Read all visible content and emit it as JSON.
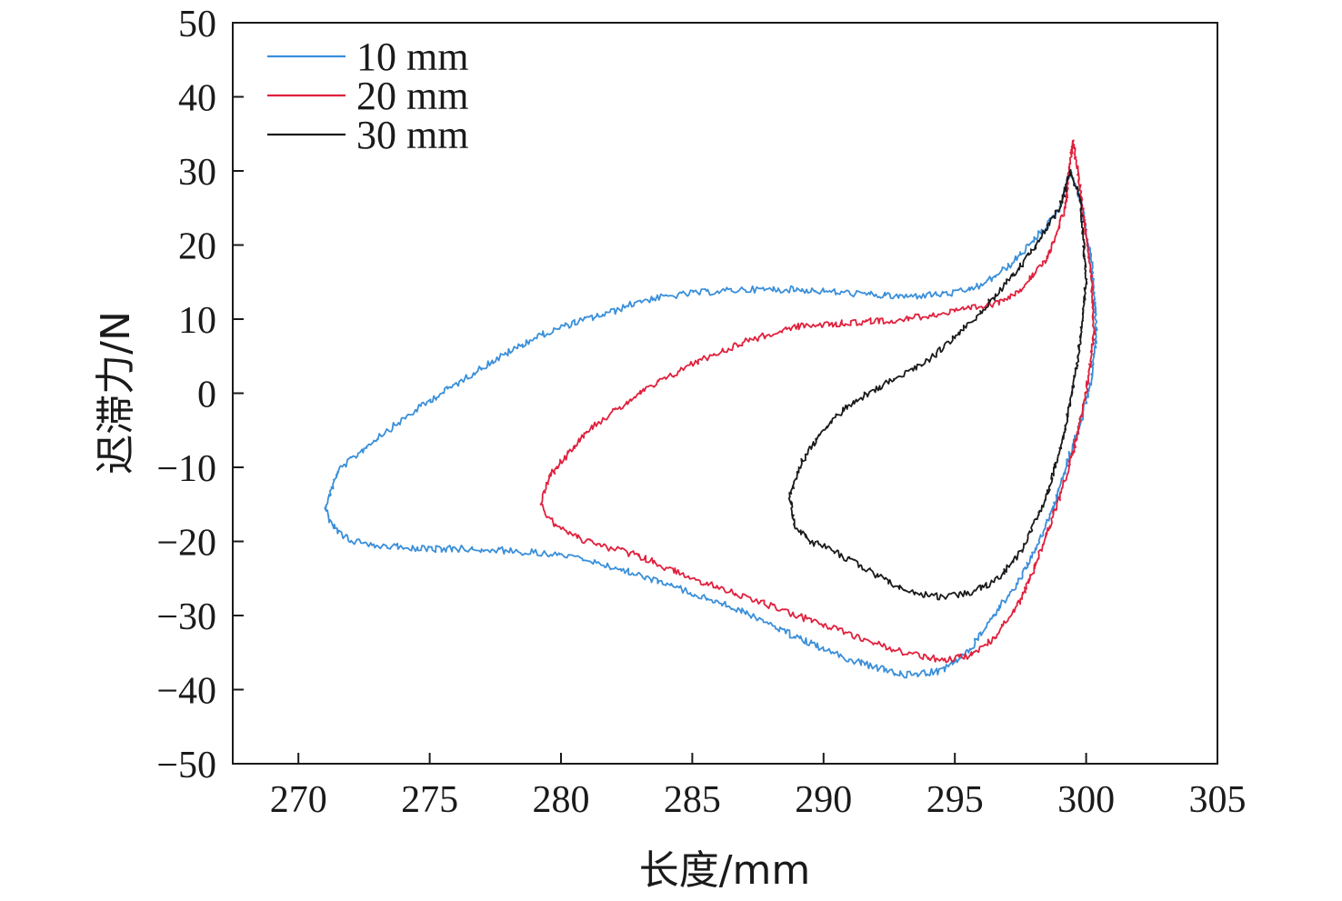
{
  "chart_data": {
    "type": "line",
    "title": "",
    "xlabel": "长度/mm",
    "ylabel": "迟滞力/N",
    "xlim": [
      267.5,
      305
    ],
    "ylim": [
      -50,
      50
    ],
    "xticks": [
      270,
      275,
      280,
      285,
      290,
      295,
      300,
      305
    ],
    "yticks": [
      -50,
      -40,
      -30,
      -20,
      -10,
      0,
      10,
      20,
      30,
      40,
      50
    ],
    "grid": false,
    "legend_position": "top-left",
    "series": [
      {
        "name": "10 mm",
        "color": "#3a8fd9",
        "x": [
          271.0,
          271.5,
          273.0,
          275.0,
          277.0,
          279.0,
          280.5,
          282.0,
          283.0,
          285.0,
          287.0,
          289.0,
          291.0,
          293.0,
          295.0,
          296.0,
          297.0,
          298.0,
          299.0,
          299.4,
          299.8,
          300.2,
          300.4,
          300.2,
          299.8,
          299.3,
          298.8,
          298.2,
          297.5,
          296.5,
          295.5,
          294.5,
          293.0,
          291.0,
          289.0,
          287.0,
          285.0,
          283.0,
          281.0,
          279.0,
          277.0,
          275.0,
          273.0,
          272.0,
          271.4,
          271.0
        ],
        "y": [
          -15.5,
          -10.5,
          -6,
          -1,
          3.5,
          7.5,
          9.5,
          11,
          12.5,
          13.5,
          14,
          14,
          13.5,
          13,
          13.5,
          14.5,
          17,
          20.5,
          25,
          30,
          26,
          18,
          8,
          2,
          -4,
          -9,
          -15,
          -20,
          -25,
          -30,
          -35,
          -37.5,
          -38,
          -36,
          -33,
          -29.5,
          -27,
          -24.5,
          -22.5,
          -21.5,
          -21,
          -21,
          -20.5,
          -20,
          -18.5,
          -15.5
        ]
      },
      {
        "name": "20 mm",
        "color": "#e0203d",
        "x": [
          279.2,
          279.6,
          281.0,
          283.0,
          285.0,
          287.0,
          289.0,
          291.0,
          293.0,
          295.0,
          296.5,
          297.5,
          298.5,
          299.2,
          299.5,
          299.8,
          300.2,
          300.3,
          300.0,
          299.5,
          298.9,
          298.2,
          297.5,
          296.5,
          295.5,
          294.5,
          293.0,
          291.0,
          289.0,
          287.0,
          285.0,
          283.0,
          281.0,
          279.8,
          279.2
        ],
        "y": [
          -15,
          -11,
          -5,
          0,
          4,
          7,
          9,
          9.5,
          10,
          11,
          12,
          14,
          18,
          25,
          34,
          27,
          16,
          8,
          0,
          -8,
          -15,
          -22,
          -28,
          -33,
          -35.5,
          -36,
          -35,
          -32.5,
          -30,
          -27.5,
          -25,
          -22,
          -20,
          -18,
          -15
        ]
      },
      {
        "name": "30 mm",
        "color": "#1a1a1a",
        "x": [
          288.7,
          289.2,
          290.0,
          291.0,
          292.0,
          293.0,
          294.0,
          295.0,
          296.0,
          297.0,
          298.0,
          299.0,
          299.4,
          299.8,
          300.0,
          299.7,
          299.2,
          298.5,
          297.5,
          296.5,
          295.5,
          294.5,
          293.5,
          292.5,
          291.5,
          290.5,
          289.5,
          288.9,
          288.7
        ],
        "y": [
          -14,
          -9,
          -5,
          -1.5,
          0.5,
          2.5,
          4.5,
          7.5,
          11,
          15,
          19.5,
          25,
          30,
          26,
          15,
          5,
          -5,
          -14,
          -21.5,
          -25.5,
          -27,
          -27.5,
          -27,
          -25.5,
          -23.5,
          -21.5,
          -20,
          -18,
          -14
        ]
      }
    ]
  }
}
